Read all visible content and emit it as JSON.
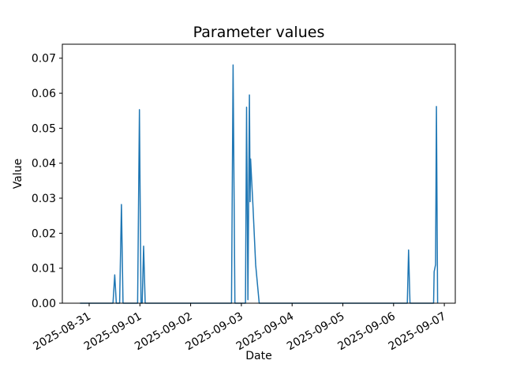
{
  "figure": {
    "title": "Parameter values",
    "xlabel": "Date",
    "ylabel": "Value"
  },
  "chart_data": {
    "type": "line",
    "title": "Parameter values",
    "xlabel": "Date",
    "ylabel": "Value",
    "legend": null,
    "grid": false,
    "line_color": "#1f77b4",
    "axis_color": "#000000",
    "xlim": [
      "2025-08-30T11:18:00Z",
      "2025-09-07T05:11:00Z"
    ],
    "ylim": [
      0,
      0.074
    ],
    "x_ticks": [
      {
        "date": "2025-08-31",
        "label": "2025-08-31"
      },
      {
        "date": "2025-09-01",
        "label": "2025-09-01"
      },
      {
        "date": "2025-09-02",
        "label": "2025-09-02"
      },
      {
        "date": "2025-09-03",
        "label": "2025-09-03"
      },
      {
        "date": "2025-09-04",
        "label": "2025-09-04"
      },
      {
        "date": "2025-09-05",
        "label": "2025-09-05"
      },
      {
        "date": "2025-09-06",
        "label": "2025-09-06"
      },
      {
        "date": "2025-09-07",
        "label": "2025-09-07"
      }
    ],
    "y_ticks": [
      {
        "value": 0.0,
        "label": "0.00"
      },
      {
        "value": 0.01,
        "label": "0.01"
      },
      {
        "value": 0.02,
        "label": "0.02"
      },
      {
        "value": 0.03,
        "label": "0.03"
      },
      {
        "value": 0.04,
        "label": "0.04"
      },
      {
        "value": 0.05,
        "label": "0.05"
      },
      {
        "value": 0.06,
        "label": "0.06"
      },
      {
        "value": 0.07,
        "label": "0.07"
      }
    ],
    "points": [
      [
        "2025-08-30T19:40:00Z",
        0
      ],
      [
        "2025-08-31T11:15:00Z",
        0
      ],
      [
        "2025-08-31T12:05:00Z",
        0.0081
      ],
      [
        "2025-08-31T12:50:00Z",
        0
      ],
      [
        "2025-08-31T14:25:00Z",
        0
      ],
      [
        "2025-08-31T15:15:00Z",
        0.0282
      ],
      [
        "2025-08-31T16:00:00Z",
        0
      ],
      [
        "2025-08-31T22:55:00Z",
        0
      ],
      [
        "2025-08-31T23:45:00Z",
        0.0553
      ],
      [
        "2025-09-01T00:30:00Z",
        0
      ],
      [
        "2025-09-01T01:05:00Z",
        0
      ],
      [
        "2025-09-01T01:45:00Z",
        0.0163
      ],
      [
        "2025-09-01T02:30:00Z",
        0
      ],
      [
        "2025-09-02T19:20:00Z",
        0
      ],
      [
        "2025-09-02T20:05:00Z",
        0.0681
      ],
      [
        "2025-09-02T20:55:00Z",
        0
      ],
      [
        "2025-09-03T01:55:00Z",
        0
      ],
      [
        "2025-09-03T02:27:00Z",
        0.056
      ],
      [
        "2025-09-03T03:05:00Z",
        0.001
      ],
      [
        "2025-09-03T03:47:00Z",
        0.0595
      ],
      [
        "2025-09-03T04:08:00Z",
        0.029
      ],
      [
        "2025-09-03T04:22:00Z",
        0.0412
      ],
      [
        "2025-09-03T04:51:00Z",
        0.0352
      ],
      [
        "2025-09-03T05:27:00Z",
        0.0282
      ],
      [
        "2025-09-03T06:45:00Z",
        0.011
      ],
      [
        "2025-09-03T08:25:00Z",
        0
      ],
      [
        "2025-09-06T06:30:00Z",
        0
      ],
      [
        "2025-09-06T07:05:00Z",
        0.0152
      ],
      [
        "2025-09-06T07:45:00Z",
        0
      ],
      [
        "2025-09-06T18:55:00Z",
        0
      ],
      [
        "2025-09-06T19:10:00Z",
        0.009
      ],
      [
        "2025-09-06T19:50:00Z",
        0.011
      ],
      [
        "2025-09-06T20:15:00Z",
        0.0562
      ],
      [
        "2025-09-06T20:50:00Z",
        0
      ]
    ]
  }
}
